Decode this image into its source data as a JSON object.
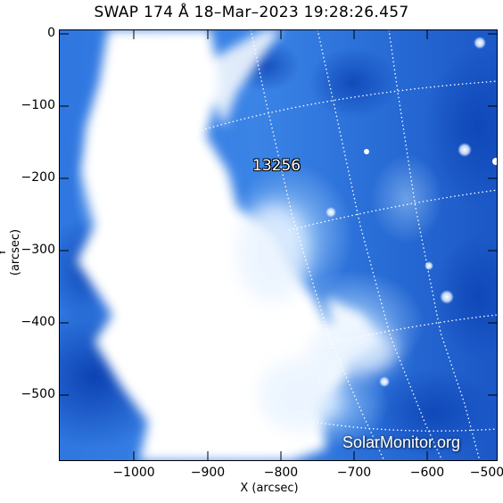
{
  "title": "SWAP 174 Å 18–Mar–2023 19:28:26.457",
  "axes": {
    "xlabel": "X (arcsec)",
    "ylabel": "Y (arcsec)",
    "xticks": [
      "−1000",
      "−900",
      "−800",
      "−700",
      "−600",
      "−500"
    ],
    "yticks": [
      "0",
      "−100",
      "−200",
      "−300",
      "−400",
      "−500"
    ]
  },
  "active_region": {
    "number": "13256"
  },
  "watermark": "SolarMonitor.org",
  "colors": {
    "background": "#ffffff",
    "image_dark_blue": "#0b3fb0",
    "image_mid_blue": "#2f77e0",
    "image_light_blue": "#8cc0f5",
    "saturated": "#ffffff",
    "grid": "#ffffff"
  }
}
